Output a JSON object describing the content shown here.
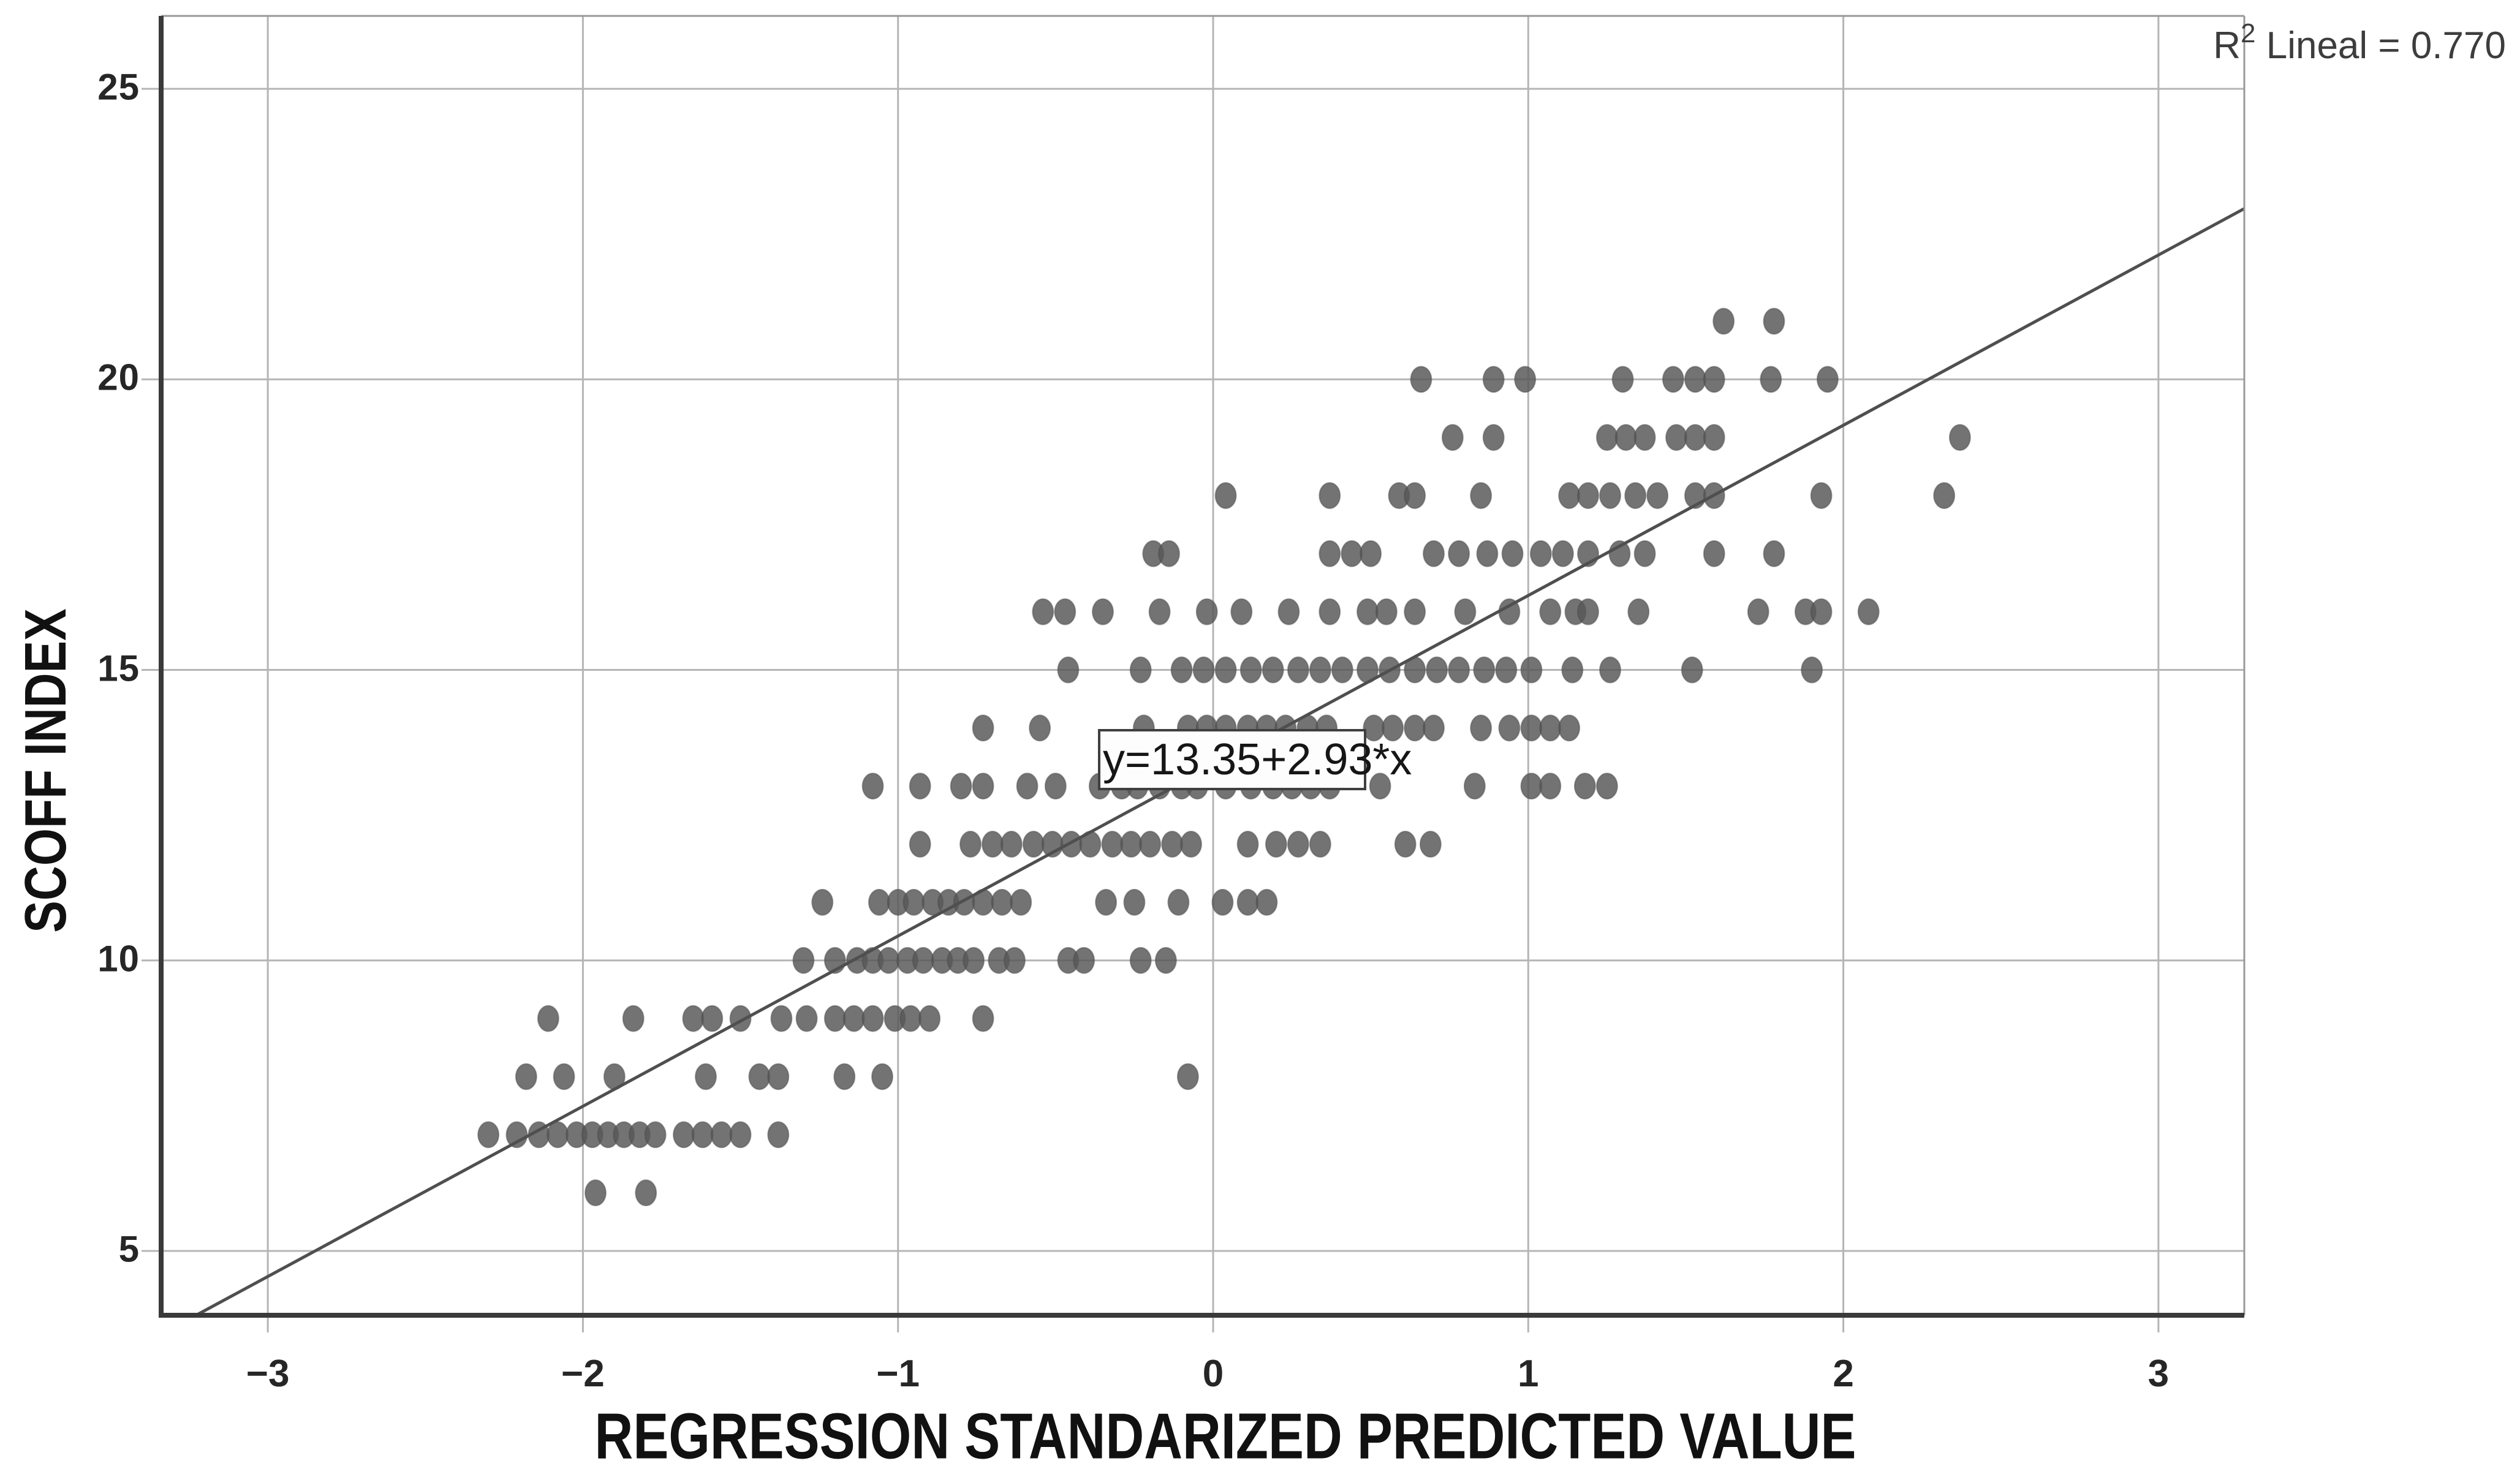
{
  "figure": {
    "equation": "y=13.35+2.93*x",
    "r2_prefix": "R",
    "r2_sup": "2",
    "r2_rest": " Lineal = 0.770",
    "x_axis_title": "REGRESSION STANDARIZED PREDICTED VALUE",
    "y_axis_title": "SCOFF INDEX"
  },
  "chart_data": {
    "type": "scatter",
    "title": "",
    "xlabel": "REGRESSION STANDARIZED PREDICTED VALUE",
    "ylabel": "SCOFF INDEX",
    "xlim": [
      -3.34,
      3.27
    ],
    "ylim": [
      3.9,
      26.2
    ],
    "x_ticks": [
      -3,
      -2,
      -1,
      0,
      1,
      2,
      3
    ],
    "x_tick_labels": [
      "−3",
      "−2",
      "−1",
      "0",
      "1",
      "2",
      "3"
    ],
    "y_ticks": [
      5,
      10,
      15,
      20,
      25
    ],
    "y_tick_labels": [
      "5",
      "10",
      "15",
      "20",
      "25"
    ],
    "grid": true,
    "legend": "none",
    "r2_label": "R² Lineal = 0.770",
    "regression": {
      "intercept": 13.35,
      "slope": 2.93,
      "r2": 0.77,
      "label": "y=13.35+2.93*x"
    },
    "annotation": {
      "text": "y=13.35+2.93*x",
      "x": -0.36,
      "y": 13.6
    },
    "series": [
      {
        "name": "observations",
        "rows": [
          {
            "y": 6,
            "xs": [
              -1.96,
              -1.8
            ]
          },
          {
            "y": 7,
            "xs": [
              -2.3,
              -2.21,
              -2.14,
              -2.08,
              -2.02,
              -1.97,
              -1.92,
              -1.87,
              -1.82,
              -1.77,
              -1.68,
              -1.62,
              -1.56,
              -1.5,
              -1.38
            ]
          },
          {
            "y": 8,
            "xs": [
              -2.18,
              -2.06,
              -1.9,
              -1.61,
              -1.44,
              -1.38,
              -1.17,
              -1.05,
              -0.08
            ]
          },
          {
            "y": 9,
            "xs": [
              -2.11,
              -1.84,
              -1.65,
              -1.59,
              -1.5,
              -1.37,
              -1.29,
              -1.2,
              -1.14,
              -1.08,
              -1.01,
              -0.96,
              -0.9,
              -0.73
            ]
          },
          {
            "y": 10,
            "xs": [
              -1.3,
              -1.2,
              -1.13,
              -1.08,
              -1.03,
              -0.97,
              -0.92,
              -0.86,
              -0.81,
              -0.76,
              -0.68,
              -0.63,
              -0.46,
              -0.41,
              -0.23,
              -0.15
            ]
          },
          {
            "y": 11,
            "xs": [
              -1.24,
              -1.06,
              -1.0,
              -0.95,
              -0.89,
              -0.84,
              -0.79,
              -0.73,
              -0.67,
              -0.61,
              -0.34,
              -0.25,
              -0.11,
              0.03,
              0.11,
              0.17
            ]
          },
          {
            "y": 12,
            "xs": [
              -0.93,
              -0.77,
              -0.7,
              -0.64,
              -0.57,
              -0.51,
              -0.45,
              -0.39,
              -0.32,
              -0.26,
              -0.2,
              -0.13,
              -0.07,
              0.11,
              0.2,
              0.27,
              0.34,
              0.61,
              0.69
            ]
          },
          {
            "y": 13,
            "xs": [
              -1.08,
              -0.93,
              -0.8,
              -0.73,
              -0.59,
              -0.5,
              -0.36,
              -0.29,
              -0.24,
              -0.17,
              -0.1,
              -0.05,
              0.04,
              0.12,
              0.19,
              0.25,
              0.31,
              0.37,
              0.53,
              0.83,
              1.01,
              1.07,
              1.18,
              1.25
            ]
          },
          {
            "y": 14,
            "xs": [
              -0.73,
              -0.55,
              -0.22,
              -0.08,
              -0.02,
              0.04,
              0.11,
              0.17,
              0.23,
              0.3,
              0.36,
              0.51,
              0.57,
              0.64,
              0.7,
              0.85,
              0.94,
              1.01,
              1.07,
              1.13
            ]
          },
          {
            "y": 15,
            "xs": [
              -0.46,
              -0.23,
              -0.1,
              -0.03,
              0.04,
              0.12,
              0.19,
              0.27,
              0.34,
              0.41,
              0.49,
              0.56,
              0.64,
              0.71,
              0.78,
              0.86,
              0.93,
              1.01,
              1.14,
              1.26,
              1.52,
              1.9
            ]
          },
          {
            "y": 16,
            "xs": [
              -0.54,
              -0.47,
              -0.35,
              -0.17,
              -0.02,
              0.09,
              0.24,
              0.37,
              0.49,
              0.55,
              0.64,
              0.8,
              0.94,
              1.07,
              1.15,
              1.19,
              1.35,
              1.73,
              1.88,
              1.93,
              2.08
            ]
          },
          {
            "y": 17,
            "xs": [
              -0.19,
              -0.14,
              0.37,
              0.44,
              0.5,
              0.7,
              0.78,
              0.87,
              0.95,
              1.04,
              1.11,
              1.19,
              1.29,
              1.37,
              1.59,
              1.78
            ]
          },
          {
            "y": 18,
            "xs": [
              0.04,
              0.37,
              0.59,
              0.64,
              0.85,
              1.13,
              1.19,
              1.26,
              1.34,
              1.41,
              1.53,
              1.59,
              1.93,
              2.32
            ]
          },
          {
            "y": 19,
            "xs": [
              0.76,
              0.89,
              1.25,
              1.31,
              1.37,
              1.47,
              1.53,
              1.59,
              2.37
            ]
          },
          {
            "y": 20,
            "xs": [
              0.66,
              0.89,
              0.99,
              1.3,
              1.46,
              1.53,
              1.59,
              1.77,
              1.95
            ]
          },
          {
            "y": 21,
            "xs": [
              1.62,
              1.78
            ]
          }
        ]
      }
    ],
    "style": {
      "dot_color": "#585858",
      "grid_color": "#b5b5b5",
      "axis_color": "#3a3a3a",
      "minor_frame_color": "#999999",
      "line_color": "#4f4f4f",
      "background": "#ffffff"
    }
  }
}
